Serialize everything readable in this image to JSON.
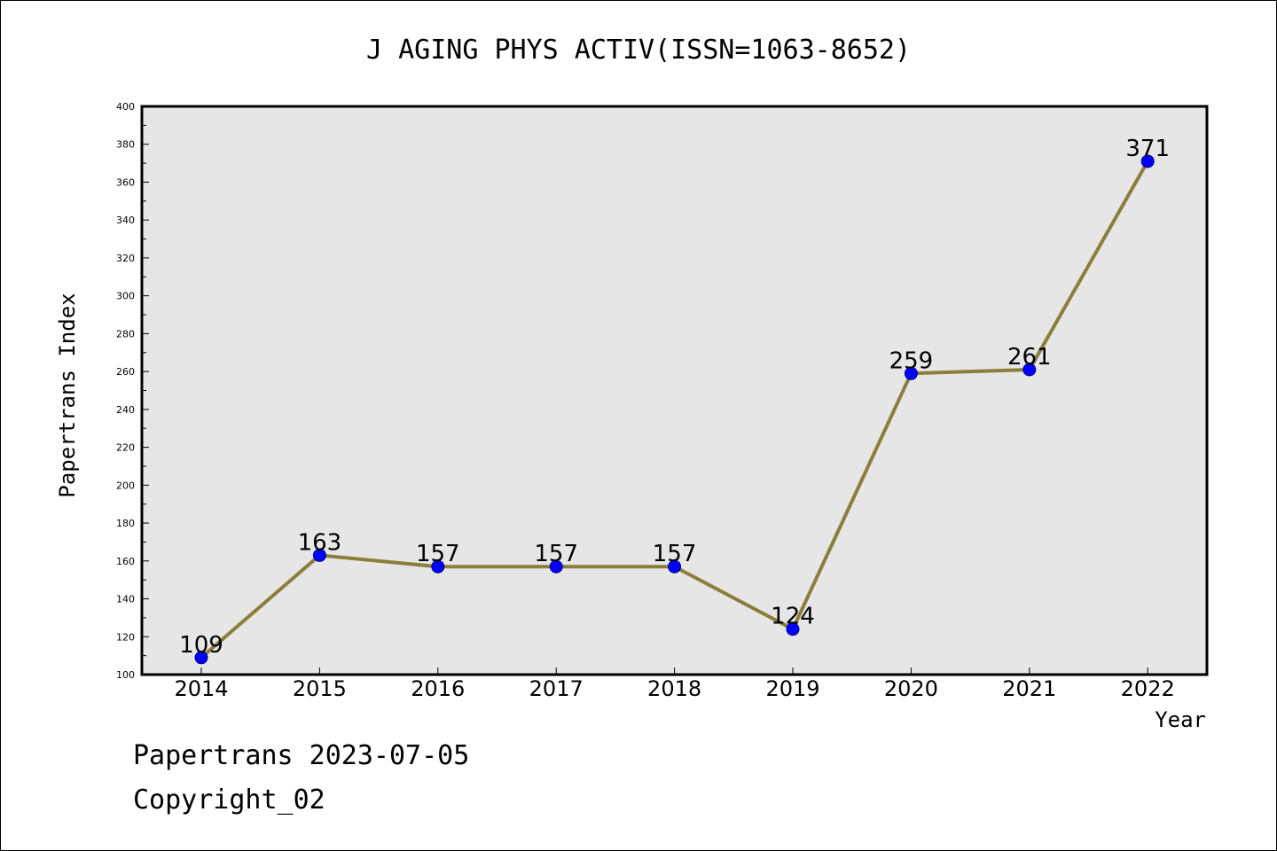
{
  "chart_data": {
    "type": "line",
    "title": "J AGING PHYS ACTIV(ISSN=1063-8652)",
    "xlabel": "Year",
    "ylabel": "Papertrans Index",
    "categories": [
      "2014",
      "2015",
      "2016",
      "2017",
      "2018",
      "2019",
      "2020",
      "2021",
      "2022"
    ],
    "series": [
      {
        "values": [
          109,
          163,
          157,
          157,
          157,
          124,
          259,
          261,
          371
        ]
      }
    ],
    "ylim": [
      100,
      400
    ],
    "y_ticks": [
      "100",
      "120",
      "140",
      "160",
      "180",
      "200",
      "220",
      "240",
      "260",
      "280",
      "300",
      "320",
      "340",
      "360",
      "380",
      "400"
    ],
    "data_labels": [
      "109",
      "163",
      "157",
      "157",
      "157",
      "124",
      "259",
      "261",
      "371"
    ],
    "grid": false,
    "legend": "none",
    "colors": {
      "line": "#8b7d3a",
      "marker": "#0000ff",
      "marker_edge": "#00008b",
      "plot_bg": "#e6e6e6"
    }
  },
  "footer": {
    "line1": "Papertrans 2023-07-05",
    "line2": "Copyright_02"
  }
}
